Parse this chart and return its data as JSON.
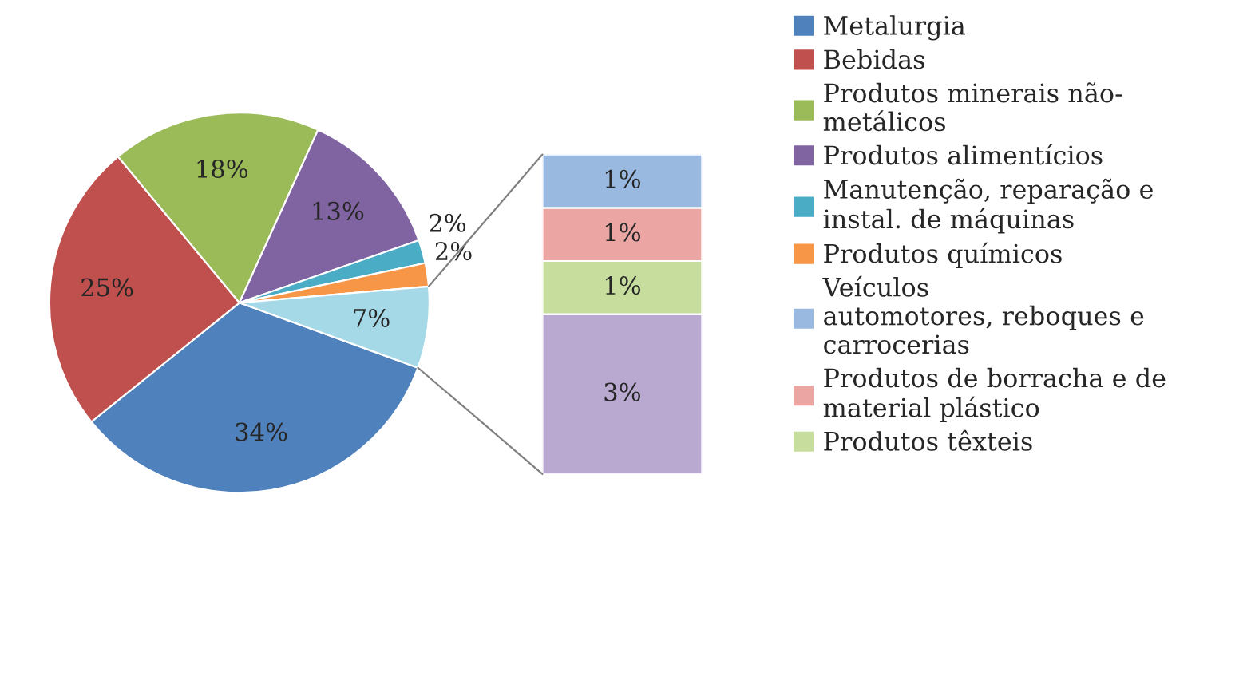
{
  "chart_data": [
    {
      "type": "pie",
      "legend": "right",
      "categories": [
        "Metalurgia",
        "Bebidas",
        "Produtos minerais não-\nmetálicos",
        "Produtos alimentícios",
        "Manutenção, reparação e\ninstal. de máquinas",
        "Produtos químicos",
        null
      ],
      "values": [
        34,
        25,
        18,
        13,
        2,
        2,
        7
      ],
      "value_labels": [
        "34%",
        "25%",
        "18%",
        "13%",
        "2%",
        "2%",
        "7%"
      ],
      "colors": [
        "#4f81bd",
        "#c0504d",
        "#9bbb59",
        "#8064a2",
        "#4bacc6",
        "#f79646",
        "#a5d9e8"
      ]
    },
    {
      "type": "bar",
      "stacked": true,
      "legend": "right",
      "tick_labels": false,
      "series": [
        {
          "color": "#b9a9d1",
          "values": [
            3
          ],
          "value_labels": [
            "3%"
          ]
        },
        {
          "name": "Produtos têxteis",
          "color": "#c6dd9e",
          "values": [
            1
          ],
          "value_labels": [
            "1%"
          ]
        },
        {
          "name": "Produtos de borracha e de\nmaterial plástico",
          "color": "#eba6a4",
          "values": [
            1
          ],
          "value_labels": [
            "1%"
          ]
        },
        {
          "name": "Veículos\nautomotores, reboques e\ncarrocerias",
          "color": "#9ab9e0",
          "values": [
            1
          ],
          "value_labels": [
            "1%"
          ]
        }
      ]
    }
  ]
}
